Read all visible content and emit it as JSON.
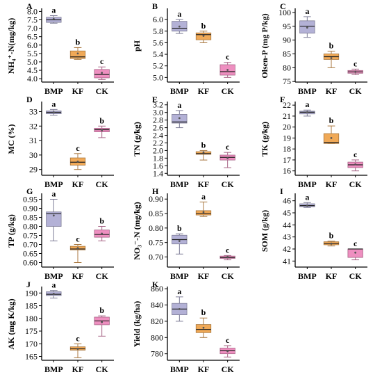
{
  "colors": {
    "BMP": "#b3b1d6",
    "KF": "#f0a957",
    "CK": "#ee8fc0",
    "axis": "#000000",
    "median": "#222222"
  },
  "chart_data": [
    {
      "type": "box",
      "panel": "A",
      "ylabel": "NH₄⁺-N(mg/kg)",
      "ylim": [
        3.8,
        8.1
      ],
      "yticks": [
        "4.0",
        "4.5",
        "5.0",
        "5.5",
        "6.0",
        "6.5",
        "7.0",
        "7.5",
        "8.0"
      ],
      "categories": [
        "BMP",
        "KF",
        "CK"
      ],
      "boxes": [
        {
          "group": "BMP",
          "q1": 7.35,
          "median": 7.5,
          "q3": 7.65,
          "min": 7.3,
          "max": 7.75,
          "mean": 7.55,
          "letter": "a"
        },
        {
          "group": "KF",
          "q1": 5.2,
          "median": 5.3,
          "q3": 5.65,
          "min": 5.15,
          "max": 5.85,
          "mean": 5.5,
          "letter": "b"
        },
        {
          "group": "CK",
          "q1": 4.05,
          "median": 4.25,
          "q3": 4.55,
          "min": 3.95,
          "max": 4.7,
          "mean": 4.35,
          "letter": "c"
        }
      ]
    },
    {
      "type": "box",
      "panel": "B",
      "ylabel": "pH",
      "ylim": [
        4.92,
        6.17
      ],
      "yticks": [
        "5.0",
        "5.2",
        "5.4",
        "5.6",
        "5.8",
        "6.0"
      ],
      "categories": [
        "BMP",
        "KF",
        "CK"
      ],
      "boxes": [
        {
          "group": "BMP",
          "q1": 5.8,
          "median": 5.85,
          "q3": 5.97,
          "min": 5.76,
          "max": 6.0,
          "mean": 5.88,
          "letter": "a"
        },
        {
          "group": "KF",
          "q1": 5.65,
          "median": 5.74,
          "q3": 5.77,
          "min": 5.6,
          "max": 5.8,
          "mean": 5.72,
          "letter": "b"
        },
        {
          "group": "CK",
          "q1": 5.04,
          "median": 5.1,
          "q3": 5.22,
          "min": 5.0,
          "max": 5.26,
          "mean": 5.13,
          "letter": "c"
        }
      ]
    },
    {
      "type": "box",
      "panel": "C",
      "ylabel": "Olsen-P (mg P/kg)",
      "ylim": [
        74.8,
        101
      ],
      "yticks": [
        "75",
        "80",
        "85",
        "90",
        "95",
        "100"
      ],
      "categories": [
        "BMP",
        "KF",
        "CK"
      ],
      "boxes": [
        {
          "group": "BMP",
          "q1": 92.5,
          "median": 95,
          "q3": 97,
          "min": 91,
          "max": 98.5,
          "mean": 94.5,
          "letter": "a"
        },
        {
          "group": "KF",
          "q1": 83,
          "median": 84,
          "q3": 85,
          "min": 80,
          "max": 86,
          "mean": 83.5,
          "letter": "b"
        },
        {
          "group": "CK",
          "q1": 78,
          "median": 78.5,
          "q3": 79,
          "min": 77.5,
          "max": 79.5,
          "mean": 78.5,
          "letter": "c"
        }
      ]
    },
    {
      "type": "box",
      "panel": "D",
      "ylabel": "MC (%)",
      "ylim": [
        28.6,
        33.6
      ],
      "yticks": [
        "29",
        "30",
        "31",
        "32",
        "33"
      ],
      "categories": [
        "BMP",
        "KF",
        "CK"
      ],
      "boxes": [
        {
          "group": "BMP",
          "q1": 32.85,
          "median": 32.95,
          "q3": 33.05,
          "min": 32.75,
          "max": 33.15,
          "mean": 32.95,
          "letter": "a"
        },
        {
          "group": "KF",
          "q1": 29.3,
          "median": 29.5,
          "q3": 29.8,
          "min": 29.0,
          "max": 30.1,
          "mean": 29.55,
          "letter": "c"
        },
        {
          "group": "CK",
          "q1": 31.6,
          "median": 31.75,
          "q3": 31.85,
          "min": 31.2,
          "max": 32.0,
          "mean": 31.7,
          "letter": "b"
        }
      ]
    },
    {
      "type": "box",
      "panel": "E",
      "ylabel": "TN (g/kg)",
      "ylim": [
        1.35,
        3.25
      ],
      "yticks": [
        "1.4",
        "1.6",
        "1.8",
        "2.0",
        "2.2",
        "2.4",
        "2.6",
        "2.8",
        "3.0",
        "3.2"
      ],
      "categories": [
        "BMP",
        "KF",
        "CK"
      ],
      "boxes": [
        {
          "group": "BMP",
          "q1": 2.72,
          "median": 2.75,
          "q3": 2.95,
          "min": 2.6,
          "max": 3.05,
          "mean": 2.85,
          "letter": "a"
        },
        {
          "group": "KF",
          "q1": 1.9,
          "median": 1.92,
          "q3": 1.97,
          "min": 1.75,
          "max": 2.0,
          "mean": 1.95,
          "letter": "b"
        },
        {
          "group": "CK",
          "q1": 1.75,
          "median": 1.82,
          "q3": 1.88,
          "min": 1.55,
          "max": 1.95,
          "mean": 1.8,
          "letter": "c"
        }
      ]
    },
    {
      "type": "box",
      "panel": "F",
      "ylabel": "TK (g/kg)",
      "ylim": [
        15.6,
        22.2
      ],
      "yticks": [
        "16",
        "17",
        "18",
        "19",
        "20",
        "21",
        "22"
      ],
      "categories": [
        "BMP",
        "KF",
        "CK"
      ],
      "boxes": [
        {
          "group": "BMP",
          "q1": 21.2,
          "median": 21.35,
          "q3": 21.45,
          "min": 21.0,
          "max": 21.55,
          "mean": 21.35,
          "letter": "a"
        },
        {
          "group": "KF",
          "q1": 18.5,
          "median": 18.6,
          "q3": 19.4,
          "min": 18.5,
          "max": 20.1,
          "mean": 19.0,
          "letter": "b"
        },
        {
          "group": "CK",
          "q1": 16.3,
          "median": 16.55,
          "q3": 16.8,
          "min": 16.0,
          "max": 17.0,
          "mean": 16.6,
          "letter": "c"
        }
      ]
    },
    {
      "type": "box",
      "panel": "G",
      "ylabel": "TP (g/kg)",
      "ylim": [
        0.575,
        0.975
      ],
      "yticks": [
        "0.60",
        "0.65",
        "0.70",
        "0.75",
        "0.80",
        "0.85",
        "0.90",
        "0.95"
      ],
      "categories": [
        "BMP",
        "KF",
        "CK"
      ],
      "boxes": [
        {
          "group": "BMP",
          "q1": 0.8,
          "median": 0.87,
          "q3": 0.88,
          "min": 0.72,
          "max": 0.95,
          "mean": 0.86,
          "letter": "a"
        },
        {
          "group": "KF",
          "q1": 0.67,
          "median": 0.675,
          "q3": 0.69,
          "min": 0.6,
          "max": 0.7,
          "mean": 0.68,
          "letter": "c"
        },
        {
          "group": "CK",
          "q1": 0.74,
          "median": 0.755,
          "q3": 0.78,
          "min": 0.72,
          "max": 0.8,
          "mean": 0.76,
          "letter": "b"
        }
      ]
    },
    {
      "type": "box",
      "panel": "H",
      "ylabel": "NO₃⁻-N (mg/kg)",
      "ylim": [
        0.665,
        0.915
      ],
      "yticks": [
        "0.70",
        "0.75",
        "0.80",
        "0.85",
        "0.90"
      ],
      "categories": [
        "BMP",
        "KF",
        "CK"
      ],
      "boxes": [
        {
          "group": "BMP",
          "q1": 0.745,
          "median": 0.76,
          "q3": 0.775,
          "min": 0.71,
          "max": 0.78,
          "mean": 0.755,
          "letter": "b"
        },
        {
          "group": "KF",
          "q1": 0.845,
          "median": 0.85,
          "q3": 0.86,
          "min": 0.84,
          "max": 0.89,
          "mean": 0.855,
          "letter": "a"
        },
        {
          "group": "CK",
          "q1": 0.695,
          "median": 0.698,
          "q3": 0.703,
          "min": 0.69,
          "max": 0.705,
          "mean": 0.7,
          "letter": "c"
        }
      ]
    },
    {
      "type": "box",
      "panel": "I",
      "ylabel": "SOM (g/kg)",
      "ylim": [
        40.5,
        46.5
      ],
      "yticks": [
        "41",
        "42",
        "43",
        "44",
        "45",
        "46"
      ],
      "categories": [
        "BMP",
        "KF",
        "CK"
      ],
      "boxes": [
        {
          "group": "BMP",
          "q1": 45.5,
          "median": 45.6,
          "q3": 45.75,
          "min": 45.45,
          "max": 45.85,
          "mean": 45.6,
          "letter": "a"
        },
        {
          "group": "KF",
          "q1": 42.35,
          "median": 42.45,
          "q3": 42.6,
          "min": 42.25,
          "max": 42.65,
          "mean": 42.45,
          "letter": "b"
        },
        {
          "group": "CK",
          "q1": 41.3,
          "median": 42.0,
          "q3": 42.0,
          "min": 41.1,
          "max": 42.0,
          "mean": 41.7,
          "letter": "c"
        }
      ]
    },
    {
      "type": "box",
      "panel": "J",
      "ylabel": "AK (mg K/kg)",
      "ylim": [
        163.5,
        192
      ],
      "yticks": [
        "165",
        "170",
        "175",
        "180",
        "185",
        "190"
      ],
      "categories": [
        "BMP",
        "KF",
        "CK"
      ],
      "boxes": [
        {
          "group": "BMP",
          "q1": 189,
          "median": 189.5,
          "q3": 190.5,
          "min": 188,
          "max": 191,
          "mean": 189.7,
          "letter": "a"
        },
        {
          "group": "KF",
          "q1": 167.5,
          "median": 168,
          "q3": 168.8,
          "min": 164.5,
          "max": 170,
          "mean": 168,
          "letter": "c"
        },
        {
          "group": "CK",
          "q1": 177.5,
          "median": 179,
          "q3": 180.5,
          "min": 173,
          "max": 181,
          "mean": 178.5,
          "letter": "b"
        }
      ]
    },
    {
      "type": "box",
      "panel": "K",
      "ylabel": "Yield (kg/ha)",
      "ylim": [
        772,
        861
      ],
      "yticks": [
        "780",
        "800",
        "820",
        "840",
        "860"
      ],
      "categories": [
        "BMP",
        "KF",
        "CK"
      ],
      "boxes": [
        {
          "group": "BMP",
          "q1": 828,
          "median": 835,
          "q3": 842,
          "min": 820,
          "max": 850,
          "mean": 835,
          "letter": "a"
        },
        {
          "group": "KF",
          "q1": 806,
          "median": 810,
          "q3": 816,
          "min": 800,
          "max": 824,
          "mean": 812,
          "letter": "b"
        },
        {
          "group": "CK",
          "q1": 780,
          "median": 784,
          "q3": 787,
          "min": 776,
          "max": 790,
          "mean": 783,
          "letter": "c"
        }
      ]
    }
  ]
}
